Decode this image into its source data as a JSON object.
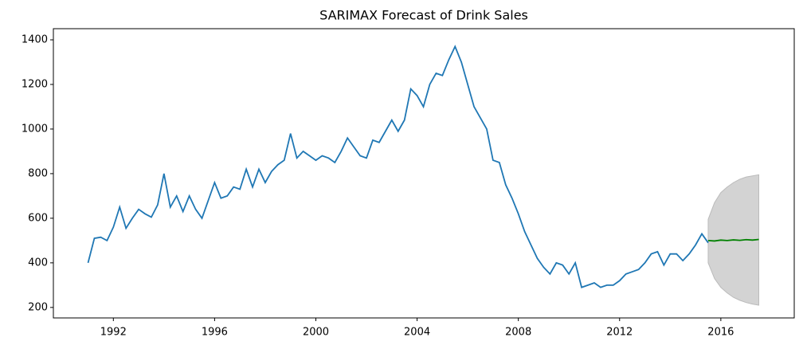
{
  "chart_data": {
    "type": "line",
    "title": "SARIMAX Forecast of Drink Sales",
    "xlim": [
      1989.63,
      2018.9
    ],
    "ylim": [
      153,
      1450
    ],
    "xticks": [
      1992,
      1996,
      2000,
      2004,
      2008,
      2012,
      2016
    ],
    "yticks": [
      200,
      400,
      600,
      800,
      1000,
      1200,
      1400
    ],
    "series": [
      {
        "color": "#1f77b4",
        "x": [
          1991.0,
          1991.25,
          1991.5,
          1991.75,
          1992.0,
          1992.25,
          1992.5,
          1992.75,
          1993.0,
          1993.25,
          1993.5,
          1993.75,
          1994.0,
          1994.25,
          1994.5,
          1994.75,
          1995.0,
          1995.25,
          1995.5,
          1995.75,
          1996.0,
          1996.25,
          1996.5,
          1996.75,
          1997.0,
          1997.25,
          1997.5,
          1997.75,
          1998.0,
          1998.25,
          1998.5,
          1998.75,
          1999.0,
          1999.25,
          1999.5,
          1999.75,
          2000.0,
          2000.25,
          2000.5,
          2000.75,
          2001.0,
          2001.25,
          2001.5,
          2001.75,
          2002.0,
          2002.25,
          2002.5,
          2002.75,
          2003.0,
          2003.25,
          2003.5,
          2003.75,
          2004.0,
          2004.25,
          2004.5,
          2004.75,
          2005.0,
          2005.25,
          2005.5,
          2005.75,
          2006.0,
          2006.25,
          2006.5,
          2006.75,
          2007.0,
          2007.25,
          2007.5,
          2007.75,
          2008.0,
          2008.25,
          2008.5,
          2008.75,
          2009.0,
          2009.25,
          2009.5,
          2009.75,
          2010.0,
          2010.25,
          2010.5,
          2010.75,
          2011.0,
          2011.25,
          2011.5,
          2011.75,
          2012.0,
          2012.25,
          2012.5,
          2012.75,
          2013.0,
          2013.25,
          2013.5,
          2013.75,
          2014.0,
          2014.25,
          2014.5,
          2014.75,
          2015.0,
          2015.25,
          2015.5
        ],
        "values": [
          400,
          510,
          515,
          500,
          560,
          650,
          555,
          600,
          640,
          620,
          605,
          660,
          800,
          650,
          700,
          630,
          700,
          640,
          600,
          680,
          760,
          690,
          700,
          740,
          730,
          820,
          740,
          820,
          760,
          810,
          840,
          860,
          980,
          870,
          900,
          880,
          860,
          880,
          870,
          850,
          900,
          960,
          920,
          880,
          870,
          950,
          940,
          990,
          1040,
          990,
          1040,
          1180,
          1150,
          1100,
          1200,
          1250,
          1240,
          1310,
          1370,
          1300,
          1200,
          1100,
          1050,
          1000,
          860,
          850,
          750,
          690,
          620,
          540,
          480,
          420,
          380,
          350,
          400,
          390,
          350,
          400,
          290,
          300,
          310,
          290,
          300,
          300,
          320,
          350,
          360,
          370,
          400,
          440,
          450,
          390,
          440,
          440,
          410,
          440,
          480,
          530,
          490
        ]
      },
      {
        "color": "green",
        "x": [
          2015.5,
          2015.75,
          2016.0,
          2016.25,
          2016.5,
          2016.75,
          2017.0,
          2017.25,
          2017.5
        ],
        "values": [
          500,
          498,
          502,
          500,
          503,
          501,
          504,
          502,
          505
        ]
      }
    ],
    "interval": {
      "color": "#d3d3d3",
      "x": [
        2015.5,
        2015.75,
        2016.0,
        2016.25,
        2016.5,
        2016.75,
        2017.0,
        2017.25,
        2017.5
      ],
      "lower": [
        400,
        330,
        290,
        265,
        245,
        232,
        222,
        215,
        210
      ],
      "upper": [
        595,
        670,
        715,
        740,
        760,
        775,
        785,
        790,
        795
      ]
    }
  }
}
